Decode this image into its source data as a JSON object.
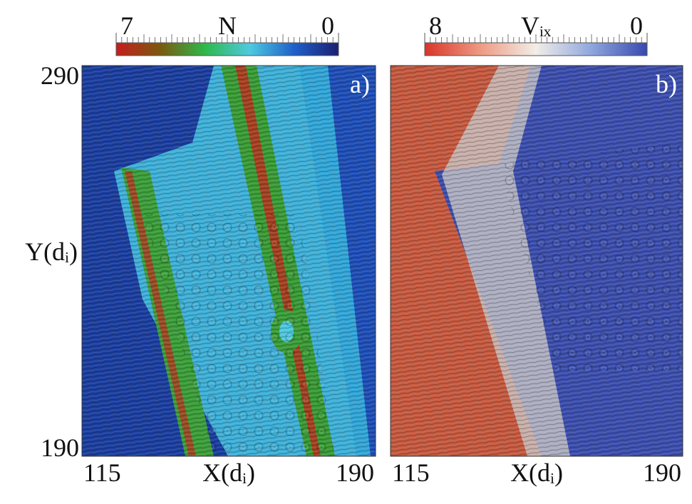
{
  "chart_data": [
    {
      "type": "field",
      "panel_label": "a)",
      "xlabel": "X(dᵢ)",
      "ylabel": "Y(dᵢ)",
      "xlim": [
        115,
        190
      ],
      "xticks": [
        115,
        190
      ],
      "ylim": [
        190,
        290
      ],
      "yticks": [
        190,
        290
      ],
      "colorbar": {
        "label": "N",
        "lim": [
          7,
          0
        ],
        "ticks": [
          7,
          0
        ],
        "colors": [
          "#c41e1e",
          "#7a5a10",
          "#2fb84a",
          "#4ec9e0",
          "#1f60c8",
          "#1c1f70"
        ]
      }
    },
    {
      "type": "field",
      "panel_label": "b)",
      "xlabel": "X(dᵢ)",
      "xlim": [
        115,
        190
      ],
      "xticks": [
        115,
        190
      ],
      "colorbar": {
        "label": "Vᵢₓ",
        "lim": [
          8,
          0
        ],
        "ticks": [
          8,
          0
        ],
        "colors": [
          "#d8352a",
          "#ee9a82",
          "#f2eee8",
          "#8fa6dd",
          "#3848b0"
        ]
      }
    }
  ]
}
